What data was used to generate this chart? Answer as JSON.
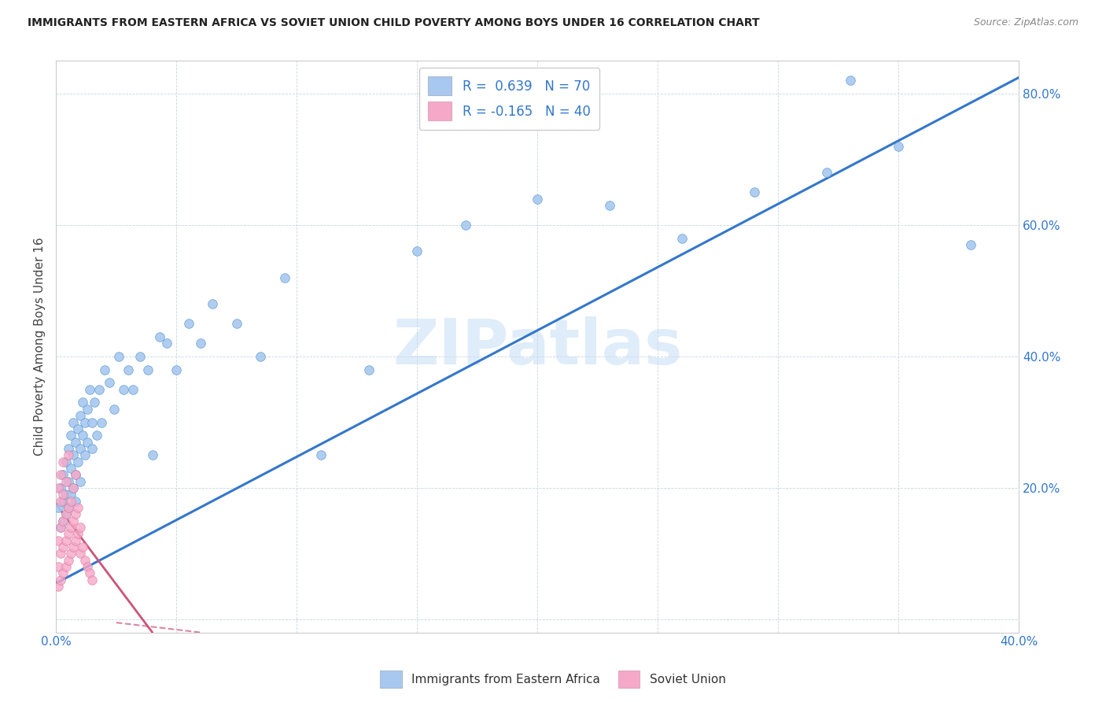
{
  "title": "IMMIGRANTS FROM EASTERN AFRICA VS SOVIET UNION CHILD POVERTY AMONG BOYS UNDER 16 CORRELATION CHART",
  "source": "Source: ZipAtlas.com",
  "ylabel": "Child Poverty Among Boys Under 16",
  "xlim": [
    0.0,
    0.4
  ],
  "ylim": [
    -0.02,
    0.85
  ],
  "x_ticks": [
    0.0,
    0.05,
    0.1,
    0.15,
    0.2,
    0.25,
    0.3,
    0.35,
    0.4
  ],
  "y_ticks": [
    0.0,
    0.2,
    0.4,
    0.6,
    0.8
  ],
  "blue_R": 0.639,
  "blue_N": 70,
  "pink_R": -0.165,
  "pink_N": 40,
  "blue_color": "#a8c8f0",
  "pink_color": "#f5a8c8",
  "blue_edge_color": "#5599cc",
  "pink_edge_color": "#dd7799",
  "blue_line_color": "#3377cc",
  "pink_line_color": "#cc5577",
  "watermark_text": "ZIPatlas",
  "legend_blue_label": "Immigrants from Eastern Africa",
  "legend_pink_label": "Soviet Union",
  "blue_line_x": [
    0.0,
    0.4
  ],
  "blue_line_y": [
    0.055,
    0.825
  ],
  "pink_line_x": [
    0.0,
    0.04
  ],
  "pink_line_y": [
    0.175,
    -0.02
  ],
  "blue_scatter_x": [
    0.001,
    0.002,
    0.002,
    0.003,
    0.003,
    0.003,
    0.004,
    0.004,
    0.004,
    0.005,
    0.005,
    0.005,
    0.006,
    0.006,
    0.006,
    0.007,
    0.007,
    0.007,
    0.008,
    0.008,
    0.008,
    0.009,
    0.009,
    0.01,
    0.01,
    0.01,
    0.011,
    0.011,
    0.012,
    0.012,
    0.013,
    0.013,
    0.014,
    0.015,
    0.015,
    0.016,
    0.017,
    0.018,
    0.019,
    0.02,
    0.022,
    0.024,
    0.026,
    0.028,
    0.03,
    0.032,
    0.035,
    0.038,
    0.04,
    0.043,
    0.046,
    0.05,
    0.055,
    0.06,
    0.065,
    0.075,
    0.085,
    0.095,
    0.11,
    0.13,
    0.15,
    0.17,
    0.2,
    0.23,
    0.26,
    0.29,
    0.32,
    0.35,
    0.38,
    0.33
  ],
  "blue_scatter_y": [
    0.17,
    0.2,
    0.14,
    0.22,
    0.18,
    0.15,
    0.24,
    0.19,
    0.16,
    0.26,
    0.21,
    0.17,
    0.28,
    0.23,
    0.19,
    0.25,
    0.2,
    0.3,
    0.27,
    0.22,
    0.18,
    0.29,
    0.24,
    0.31,
    0.26,
    0.21,
    0.28,
    0.33,
    0.25,
    0.3,
    0.32,
    0.27,
    0.35,
    0.3,
    0.26,
    0.33,
    0.28,
    0.35,
    0.3,
    0.38,
    0.36,
    0.32,
    0.4,
    0.35,
    0.38,
    0.35,
    0.4,
    0.38,
    0.25,
    0.43,
    0.42,
    0.38,
    0.45,
    0.42,
    0.48,
    0.45,
    0.4,
    0.52,
    0.25,
    0.38,
    0.56,
    0.6,
    0.64,
    0.63,
    0.58,
    0.65,
    0.68,
    0.72,
    0.57,
    0.82
  ],
  "pink_scatter_x": [
    0.001,
    0.001,
    0.001,
    0.001,
    0.002,
    0.002,
    0.002,
    0.002,
    0.002,
    0.003,
    0.003,
    0.003,
    0.003,
    0.003,
    0.004,
    0.004,
    0.004,
    0.004,
    0.005,
    0.005,
    0.005,
    0.005,
    0.006,
    0.006,
    0.006,
    0.007,
    0.007,
    0.007,
    0.008,
    0.008,
    0.008,
    0.009,
    0.009,
    0.01,
    0.01,
    0.011,
    0.012,
    0.013,
    0.014,
    0.015
  ],
  "pink_scatter_y": [
    0.05,
    0.08,
    0.12,
    0.2,
    0.06,
    0.1,
    0.14,
    0.18,
    0.22,
    0.07,
    0.11,
    0.15,
    0.19,
    0.24,
    0.08,
    0.12,
    0.16,
    0.21,
    0.09,
    0.13,
    0.17,
    0.25,
    0.1,
    0.14,
    0.18,
    0.11,
    0.15,
    0.2,
    0.12,
    0.16,
    0.22,
    0.13,
    0.17,
    0.1,
    0.14,
    0.11,
    0.09,
    0.08,
    0.07,
    0.06
  ]
}
